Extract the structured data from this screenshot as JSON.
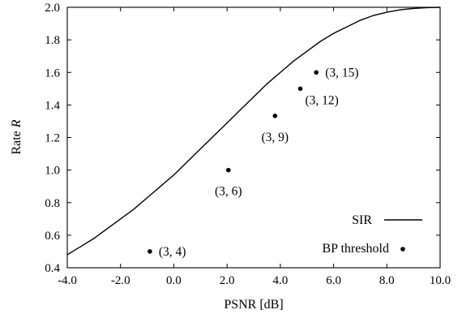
{
  "chart_data": {
    "type": "line",
    "xlabel": "PSNR [dB]",
    "ylabel_prefix": "Rate ",
    "ylabel_var": "R",
    "xlim": [
      -4.0,
      10.0
    ],
    "ylim": [
      0.4,
      2.0
    ],
    "x_ticks": [
      -4.0,
      -2.0,
      0.0,
      2.0,
      4.0,
      6.0,
      8.0,
      10.0
    ],
    "x_tick_labels": [
      "-4.0",
      "-2.0",
      "0.0",
      "2.0",
      "4.0",
      "6.0",
      "8.0",
      "10.0"
    ],
    "y_ticks": [
      0.4,
      0.6,
      0.8,
      1.0,
      1.2,
      1.4,
      1.6,
      1.8,
      2.0
    ],
    "y_tick_labels": [
      "0.4",
      "0.6",
      "0.8",
      "1.0",
      "1.2",
      "1.4",
      "1.6",
      "1.8",
      "2.0"
    ],
    "grid": false,
    "legend_position": "bottom-right",
    "series": [
      {
        "name": "SIR",
        "kind": "line",
        "x": [
          -4.0,
          -3.5,
          -3.0,
          -2.5,
          -2.0,
          -1.5,
          -1.0,
          -0.5,
          0.0,
          0.5,
          1.0,
          1.5,
          2.0,
          2.5,
          3.0,
          3.5,
          4.0,
          4.5,
          5.0,
          5.5,
          6.0,
          6.5,
          7.0,
          7.5,
          8.0,
          8.5,
          9.0,
          9.5,
          10.0
        ],
        "y": [
          0.48,
          0.53,
          0.58,
          0.64,
          0.7,
          0.76,
          0.83,
          0.9,
          0.97,
          1.05,
          1.13,
          1.21,
          1.29,
          1.37,
          1.45,
          1.53,
          1.6,
          1.67,
          1.73,
          1.79,
          1.84,
          1.88,
          1.92,
          1.95,
          1.97,
          1.985,
          1.993,
          1.998,
          2.0
        ]
      },
      {
        "name": "BP threshold",
        "kind": "scatter",
        "points": [
          {
            "x": -0.9,
            "y": 0.5,
            "label": "(3, 4)",
            "label_pos": "right"
          },
          {
            "x": 2.05,
            "y": 1.0,
            "label": "(3, 6)",
            "label_pos": "below"
          },
          {
            "x": 3.8,
            "y": 1.333,
            "label": "(3, 9)",
            "label_pos": "below"
          },
          {
            "x": 4.75,
            "y": 1.5,
            "label": "(3, 12)",
            "label_pos": "below-right"
          },
          {
            "x": 5.35,
            "y": 1.6,
            "label": "(3, 15)",
            "label_pos": "right"
          }
        ]
      }
    ]
  }
}
